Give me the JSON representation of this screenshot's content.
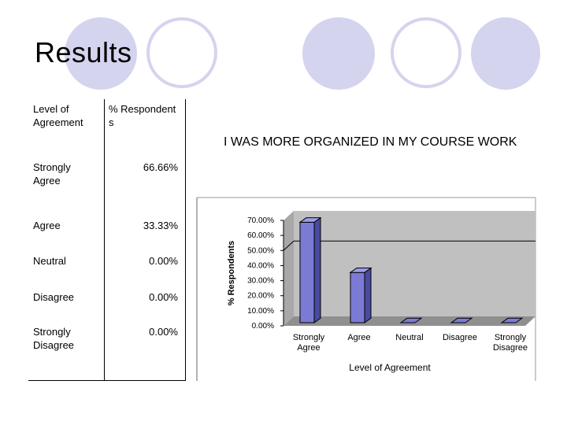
{
  "slide": {
    "title": "Results"
  },
  "table": {
    "headers": [
      "Level of Agreement",
      "% Respondents"
    ],
    "rows": [
      {
        "level": "Strongly Agree",
        "percent": "66.66%"
      },
      {
        "level": "Agree",
        "percent": "33.33%"
      },
      {
        "level": "Neutral",
        "percent": "0.00%"
      },
      {
        "level": "Disagree",
        "percent": "0.00%"
      },
      {
        "level": "Strongly Disagree",
        "percent": "0.00%"
      }
    ]
  },
  "chart_data": {
    "type": "bar",
    "title": "I WAS MORE ORGANIZED IN MY COURSE WORK",
    "categories": [
      "Strongly Agree",
      "Agree",
      "Neutral",
      "Disagree",
      "Strongly Disagree"
    ],
    "values": [
      66.66,
      33.33,
      0,
      0,
      0
    ],
    "xlabel": "Level of Agreement",
    "ylabel": "% Respondents",
    "ylim": [
      0,
      70
    ],
    "yticks": [
      "0.00%",
      "10.00%",
      "20.00%",
      "30.00%",
      "40.00%",
      "50.00%",
      "60.00%",
      "70.00%"
    ],
    "grid": true,
    "bar_color": "#7b7bd6",
    "plot_background": "#c0c0c0"
  },
  "colors": {
    "decor": "#d4d4ef"
  }
}
